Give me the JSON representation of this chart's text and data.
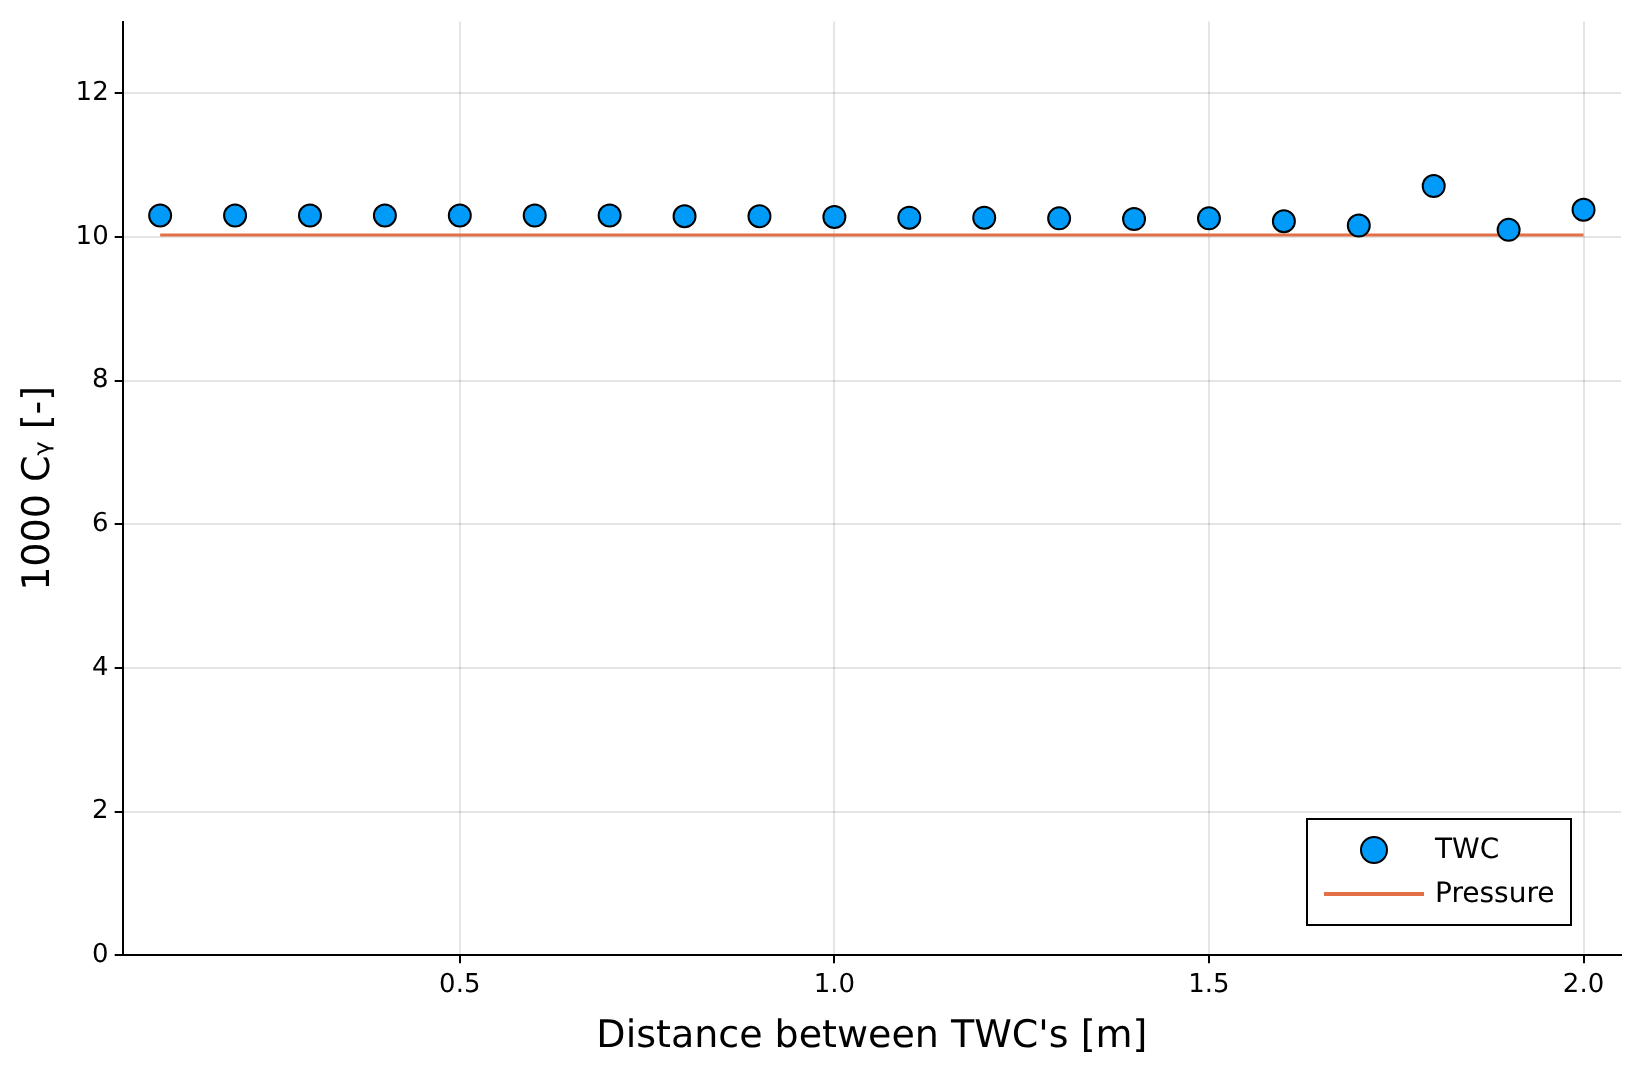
{
  "chart_data": {
    "type": "scatter",
    "xlabel": "Distance between TWC's [m]",
    "ylabel": "1000 Cᵧ [-]",
    "xlim": [
      0.05,
      2.05
    ],
    "xticks": [
      0.5,
      {
        "value": 1,
        "label": "1.0"
      },
      1.5,
      {
        "value": 2,
        "label": "2.0"
      }
    ],
    "ylim": [
      0,
      13
    ],
    "yticks": [
      0,
      2,
      4,
      6,
      8,
      10,
      12
    ],
    "grid": true,
    "legend": "bottom right",
    "series": [
      {
        "name": "TWC",
        "marker": "circle",
        "color": "#009af9",
        "x": [
          0.1,
          0.2,
          0.3,
          0.4,
          0.5,
          0.6,
          0.7,
          0.8,
          0.9,
          1.0,
          1.1,
          1.2,
          1.3,
          1.4,
          1.5,
          1.6,
          1.7,
          1.8,
          1.9,
          2.0
        ],
        "values": [
          10.3,
          10.3,
          10.3,
          10.3,
          10.3,
          10.3,
          10.3,
          10.29,
          10.29,
          10.28,
          10.27,
          10.27,
          10.26,
          10.25,
          10.26,
          10.22,
          10.16,
          10.71,
          10.1,
          10.38
        ]
      },
      {
        "name": "Pressure",
        "type": "line",
        "marker": "none",
        "color": "#e26f46",
        "x": [
          0.1,
          2.0
        ],
        "values": [
          10.03,
          10.03
        ]
      }
    ]
  }
}
